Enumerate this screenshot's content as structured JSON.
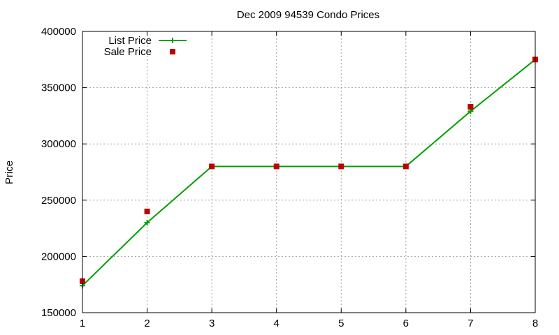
{
  "chart_data": {
    "type": "line",
    "title": "Dec 2009 94539 Condo Prices",
    "xlabel": "",
    "ylabel": "Price",
    "xlim": [
      1,
      8
    ],
    "ylim": [
      150000,
      400000
    ],
    "xticks": [
      "1",
      "2",
      "3",
      "4",
      "5",
      "6",
      "7",
      "8"
    ],
    "yticks": [
      "150000",
      "200000",
      "250000",
      "300000",
      "350000",
      "400000"
    ],
    "grid": true,
    "legend_position": "top-left",
    "series": [
      {
        "name": "List Price",
        "style": "line+cross",
        "color": "#00a000",
        "points": [
          [
            1,
            174000
          ],
          [
            2,
            230000
          ],
          [
            3,
            280000
          ],
          [
            4,
            280000
          ],
          [
            5,
            280000
          ],
          [
            6,
            280000
          ],
          [
            7,
            329000
          ],
          [
            8,
            375000
          ]
        ]
      },
      {
        "name": "Sale Price",
        "style": "square",
        "color": "#c00000",
        "points": [
          [
            1,
            178000
          ],
          [
            2,
            240000
          ],
          [
            3,
            280000
          ],
          [
            4,
            280000
          ],
          [
            5,
            280000
          ],
          [
            6,
            280000
          ],
          [
            7,
            333000
          ],
          [
            8,
            375000
          ]
        ]
      }
    ]
  }
}
